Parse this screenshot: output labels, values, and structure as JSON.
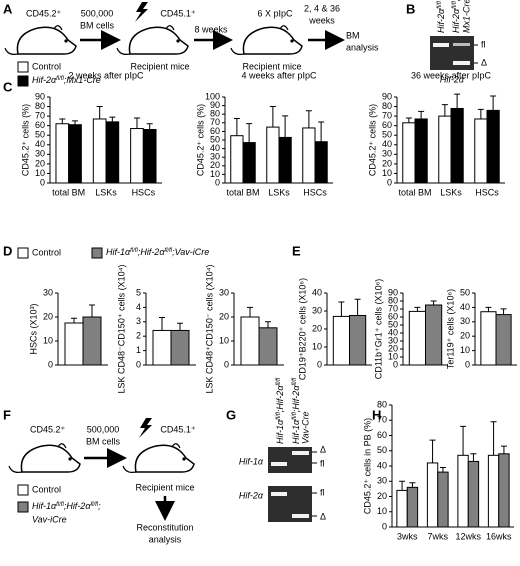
{
  "panels": [
    "A",
    "B",
    "C",
    "D",
    "E",
    "F",
    "G",
    "H"
  ],
  "diagram_a": {
    "donor": "CD45.2⁺",
    "transfer": [
      "500,000",
      "BM cells"
    ],
    "recipient": "CD45.1⁺",
    "wait": "8 weeks",
    "treatment": "6 X pIpC",
    "timepoints": [
      "2, 4 & 36",
      "weeks"
    ],
    "recipient_label": [
      "Recipient mice",
      "Recipient mice"
    ],
    "readout": [
      "BM",
      "analysis"
    ],
    "legend": {
      "control": "Control",
      "mutant": [
        "Hif-2α",
        "fl/fl",
        ";Mx1-Cre"
      ]
    }
  },
  "gel_b": {
    "lane1": [
      "Hif-2α",
      "fl/fl"
    ],
    "lane2": [
      "Hif-2α",
      "fl/fl",
      ";"
    ],
    "lane2_line2": "Mx1-Cre",
    "bands": [
      "fl",
      "Δ"
    ],
    "gene": "Hif-2α"
  },
  "legend_d": {
    "control": "Control",
    "mutant": [
      "Hif-1α",
      "fl/fl",
      ";Hif-2α",
      "fl/fl",
      ";Vav-iCre"
    ]
  },
  "diagram_f": {
    "donor": "CD45.2⁺",
    "transfer": [
      "500,000",
      "BM cells"
    ],
    "recipient": "CD45.1⁺",
    "recipient_label": "Recipient mice",
    "readout": [
      "Reconstitution",
      "analysis"
    ],
    "legend": {
      "control": "Control",
      "mutant": [
        "Hif-1α",
        "fl/fl",
        ";Hif-2α",
        "fl/fl",
        ";"
      ],
      "mutant_line2": "Vav-iCre"
    }
  },
  "gel_g": {
    "lane1": [
      "Hif-1α",
      "fl/fl",
      ";Hif-2α",
      "fl/fl"
    ],
    "lane2": [
      "Hif-1α",
      "fl/fl",
      ";Hif-2α",
      "fl/fl"
    ],
    "lane2_line2": "Vav-Cre",
    "genes": [
      "Hif-1α",
      "Hif-2α"
    ],
    "bands1": [
      "Δ",
      "fl"
    ],
    "bands2": [
      "fl",
      "Δ"
    ]
  },
  "chart_data": [
    {
      "type": "bar",
      "title": "2 weeks after pIpC",
      "ylabel": "CD45.2⁺ cells (%)",
      "categories": [
        "total BM",
        "LSKs",
        "HSCs"
      ],
      "series": [
        {
          "color": "#ffffff",
          "values": [
            62,
            67,
            57
          ],
          "errors": [
            5,
            13,
            11
          ]
        },
        {
          "color": "#000000",
          "values": [
            61,
            64,
            56
          ],
          "errors": [
            4,
            5,
            6
          ]
        }
      ],
      "ylim": [
        0,
        90
      ],
      "yticks": [
        0,
        10,
        20,
        30,
        40,
        50,
        60,
        70,
        80,
        90
      ]
    },
    {
      "type": "bar",
      "title": "4 weeks after pIpC",
      "ylabel": "CD45.2⁺ cells (%)",
      "categories": [
        "total BM",
        "LSKs",
        "HSCs"
      ],
      "series": [
        {
          "color": "#ffffff",
          "values": [
            55,
            65,
            64
          ],
          "errors": [
            20,
            24,
            20
          ]
        },
        {
          "color": "#000000",
          "values": [
            47,
            53,
            48
          ],
          "errors": [
            22,
            25,
            23
          ]
        }
      ],
      "ylim": [
        0,
        100
      ],
      "yticks": [
        0,
        10,
        20,
        30,
        40,
        50,
        60,
        70,
        80,
        90,
        100
      ]
    },
    {
      "type": "bar",
      "title": "36 weeks after pIpC",
      "ylabel": "CD45.2⁺ cells (%)",
      "categories": [
        "total BM",
        "LSKs",
        "HSCs"
      ],
      "series": [
        {
          "color": "#ffffff",
          "values": [
            63,
            70,
            67
          ],
          "errors": [
            5,
            12,
            10
          ]
        },
        {
          "color": "#000000",
          "values": [
            67,
            78,
            76
          ],
          "errors": [
            8,
            15,
            15
          ]
        }
      ],
      "ylim": [
        0,
        90
      ],
      "yticks": [
        0,
        10,
        20,
        30,
        40,
        50,
        60,
        70,
        80,
        90
      ]
    },
    {
      "type": "bar",
      "ylabel": "HSCs (X10³)",
      "series": [
        {
          "color": "#ffffff",
          "values": [
            17.5
          ],
          "errors": [
            2
          ]
        },
        {
          "color": "#808080",
          "values": [
            20
          ],
          "errors": [
            5
          ]
        }
      ],
      "ylim": [
        0,
        30
      ],
      "yticks": [
        0,
        10,
        20,
        30
      ]
    },
    {
      "type": "bar",
      "ylabel": "LSK CD48⁻CD150⁺ cells (X10⁴)",
      "series": [
        {
          "color": "#ffffff",
          "values": [
            2.4
          ],
          "errors": [
            0.9
          ]
        },
        {
          "color": "#808080",
          "values": [
            2.4
          ],
          "errors": [
            0.5
          ]
        }
      ],
      "ylim": [
        0,
        5
      ],
      "yticks": [
        0,
        1,
        2,
        3,
        4,
        5
      ]
    },
    {
      "type": "bar",
      "ylabel": "LSK CD48⁺CD150⁻ cells (X10⁴)",
      "series": [
        {
          "color": "#ffffff",
          "values": [
            20
          ],
          "errors": [
            4
          ]
        },
        {
          "color": "#808080",
          "values": [
            15.5
          ],
          "errors": [
            2.5
          ]
        }
      ],
      "ylim": [
        0,
        30
      ],
      "yticks": [
        0,
        10,
        20,
        30
      ]
    },
    {
      "type": "bar",
      "ylabel": "CD19⁺B220⁺ cells (X10⁶)",
      "series": [
        {
          "color": "#ffffff",
          "values": [
            27
          ],
          "errors": [
            8
          ]
        },
        {
          "color": "#808080",
          "values": [
            27.5
          ],
          "errors": [
            9
          ]
        }
      ],
      "ylim": [
        0,
        40
      ],
      "yticks": [
        0,
        10,
        20,
        30,
        40
      ]
    },
    {
      "type": "bar",
      "ylabel": "CD11b⁺Gr1⁺ cells (X10⁶)",
      "series": [
        {
          "color": "#ffffff",
          "values": [
            67
          ],
          "errors": [
            5
          ]
        },
        {
          "color": "#808080",
          "values": [
            75
          ],
          "errors": [
            5
          ]
        }
      ],
      "ylim": [
        0,
        90
      ],
      "yticks": [
        0,
        10,
        20,
        30,
        40,
        50,
        60,
        70,
        80,
        90
      ]
    },
    {
      "type": "bar",
      "ylabel": "Ter119⁺ cells (X10⁶)",
      "series": [
        {
          "color": "#ffffff",
          "values": [
            37
          ],
          "errors": [
            3
          ]
        },
        {
          "color": "#808080",
          "values": [
            35
          ],
          "errors": [
            4
          ]
        }
      ],
      "ylim": [
        0,
        50
      ],
      "yticks": [
        0,
        10,
        20,
        30,
        40,
        50
      ]
    },
    {
      "type": "bar",
      "ylabel": "CD45.2⁺ cells in PB (%)",
      "categories": [
        "3wks",
        "7wks",
        "12wks",
        "16wks"
      ],
      "series": [
        {
          "color": "#ffffff",
          "values": [
            24,
            42,
            47,
            47
          ],
          "errors": [
            6,
            15,
            19,
            22
          ]
        },
        {
          "color": "#808080",
          "values": [
            26,
            36,
            43,
            48
          ],
          "errors": [
            3,
            3,
            5,
            5
          ]
        }
      ],
      "ylim": [
        0,
        80
      ],
      "yticks": [
        0,
        10,
        20,
        30,
        40,
        50,
        60,
        70,
        80
      ]
    }
  ]
}
